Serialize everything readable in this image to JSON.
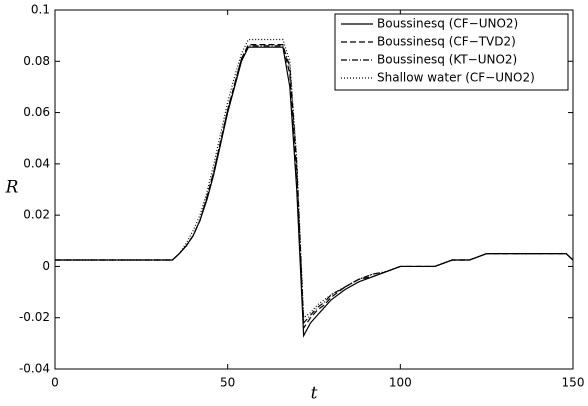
{
  "chart_data": {
    "type": "line",
    "xlabel": "t",
    "ylabel": "R",
    "x": [
      0,
      34,
      36,
      38,
      40,
      42,
      44,
      46,
      48,
      50,
      52,
      54,
      56,
      58,
      60,
      62,
      64,
      66,
      68,
      70,
      72,
      74,
      76,
      78,
      80,
      84,
      88,
      92,
      96,
      100,
      105,
      110,
      115,
      120,
      125,
      130,
      140,
      148,
      150
    ],
    "series": [
      {
        "name": "Boussinesq (CF−UNO2)",
        "color": "#000000",
        "dash": "none",
        "values": [
          0.0025,
          0.0025,
          0.005,
          0.008,
          0.012,
          0.018,
          0.026,
          0.036,
          0.048,
          0.06,
          0.07,
          0.08,
          0.0855,
          0.0855,
          0.0855,
          0.0855,
          0.0855,
          0.0855,
          0.07,
          0.03,
          -0.027,
          -0.022,
          -0.019,
          -0.016,
          -0.013,
          -0.009,
          -0.006,
          -0.004,
          -0.002,
          0,
          0,
          0,
          0.0025,
          0.0025,
          0.005,
          0.005,
          0.005,
          0.005,
          0.0025
        ]
      },
      {
        "name": "Boussinesq (CF−TVD2)",
        "color": "#000000",
        "dash": "6,3",
        "values": [
          0.0025,
          0.0025,
          0.005,
          0.008,
          0.012,
          0.018,
          0.027,
          0.037,
          0.049,
          0.061,
          0.071,
          0.081,
          0.0865,
          0.0865,
          0.0865,
          0.0865,
          0.0865,
          0.0865,
          0.075,
          0.036,
          -0.024,
          -0.02,
          -0.017,
          -0.015,
          -0.012,
          -0.008,
          -0.005,
          -0.004,
          -0.002,
          0,
          0,
          0,
          0.0025,
          0.0025,
          0.005,
          0.005,
          0.005,
          0.005,
          0.0025
        ]
      },
      {
        "name": "Boussinesq (KT−UNO2)",
        "color": "#000000",
        "dash": "6,2,1,2",
        "values": [
          0.0025,
          0.0025,
          0.005,
          0.008,
          0.012,
          0.018,
          0.027,
          0.037,
          0.049,
          0.061,
          0.071,
          0.081,
          0.086,
          0.086,
          0.086,
          0.086,
          0.086,
          0.086,
          0.078,
          0.04,
          -0.022,
          -0.019,
          -0.016,
          -0.014,
          -0.011,
          -0.008,
          -0.005,
          -0.003,
          -0.002,
          0,
          0,
          0,
          0.0025,
          0.0025,
          0.005,
          0.005,
          0.005,
          0.005,
          0.0025
        ]
      },
      {
        "name": "Shallow water (CF−UNO2)",
        "color": "#000000",
        "dash": "1,2",
        "values": [
          0.0025,
          0.0025,
          0.005,
          0.009,
          0.014,
          0.02,
          0.029,
          0.04,
          0.052,
          0.064,
          0.074,
          0.083,
          0.0885,
          0.0885,
          0.0885,
          0.0885,
          0.0885,
          0.0885,
          0.08,
          0.042,
          -0.02,
          -0.018,
          -0.015,
          -0.013,
          -0.011,
          -0.008,
          -0.005,
          -0.003,
          -0.002,
          0,
          0,
          0,
          0.0025,
          0.0025,
          0.005,
          0.005,
          0.005,
          0.005,
          0.0025
        ]
      }
    ],
    "xlim": [
      0,
      150
    ],
    "xticks": [
      0,
      50,
      100,
      150
    ],
    "ylim": [
      -0.04,
      0.1
    ],
    "yticks": [
      -0.04,
      -0.02,
      0,
      0.02,
      0.04,
      0.06,
      0.08,
      0.1
    ],
    "grid": false,
    "legend": "upper right"
  }
}
